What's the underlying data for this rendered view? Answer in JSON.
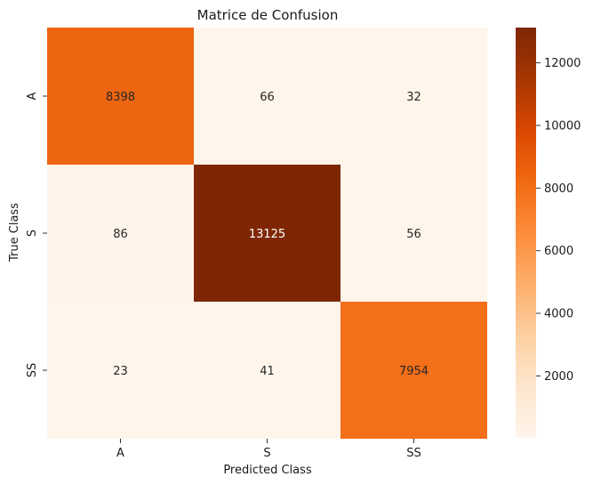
{
  "chart_data": {
    "type": "heatmap",
    "title": "Matrice de Confusion",
    "xlabel": "Predicted Class",
    "ylabel": "True Class",
    "x_categories": [
      "A",
      "S",
      "SS"
    ],
    "y_categories": [
      "A",
      "S",
      "SS"
    ],
    "values": [
      [
        8398,
        66,
        32
      ],
      [
        86,
        13125,
        56
      ],
      [
        23,
        41,
        7954
      ]
    ],
    "colormap": "Oranges",
    "vmin": 23,
    "vmax": 13125,
    "colorbar_ticks": [
      2000,
      4000,
      6000,
      8000,
      10000,
      12000
    ],
    "colorbar_tick_labels": [
      "2000",
      "4000",
      "6000",
      "8000",
      "10000",
      "12000"
    ],
    "annotation_colors": {
      "dark_cell": "#ffffff",
      "light_cell": "#262626"
    },
    "grid": false,
    "legend": "colorbar-right"
  }
}
